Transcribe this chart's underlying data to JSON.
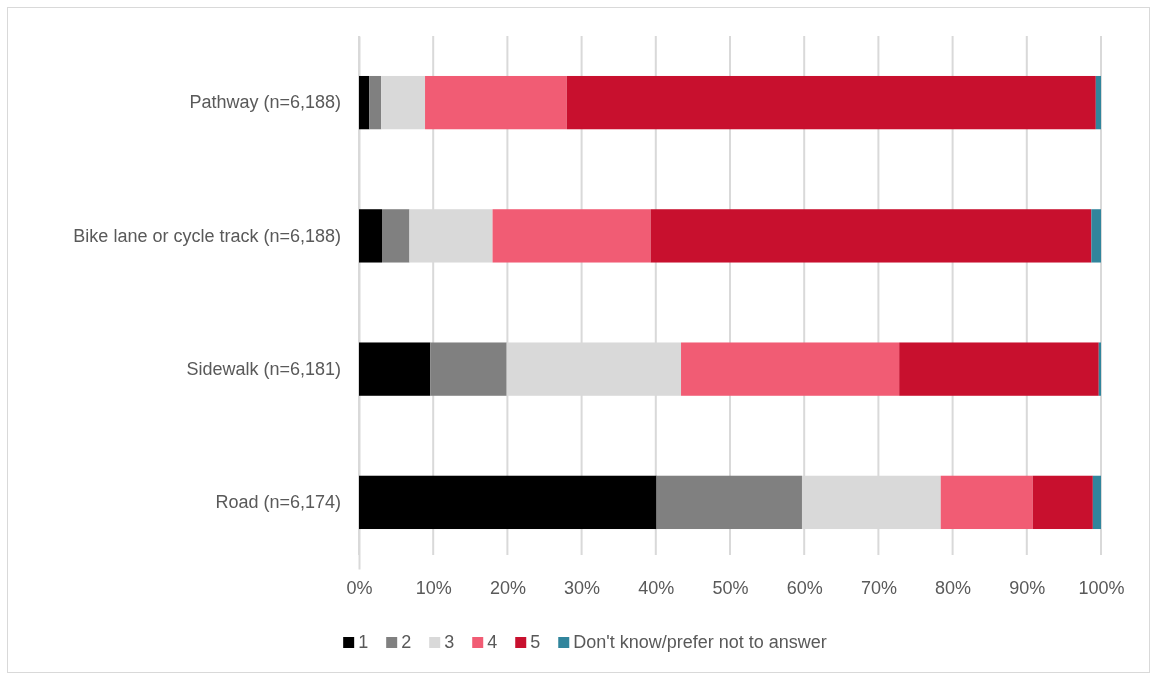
{
  "chart_data": {
    "type": "bar",
    "orientation": "horizontal",
    "stacked": true,
    "categories": [
      "Pathway (n=6,188)",
      "Bike lane or cycle track (n=6,188)",
      "Sidewalk (n=6,181)",
      "Road (n=6,174)"
    ],
    "series": [
      {
        "name": "1",
        "color": "#000000",
        "values": [
          1.4,
          3.1,
          9.6,
          40.1
        ]
      },
      {
        "name": "2",
        "color": "#808080",
        "values": [
          1.6,
          3.7,
          10.3,
          19.6
        ]
      },
      {
        "name": "3",
        "color": "#d9d9d9",
        "values": [
          5.9,
          11.2,
          23.5,
          18.7
        ]
      },
      {
        "name": "4",
        "color": "#f15c74",
        "values": [
          19.1,
          21.3,
          29.4,
          12.4
        ]
      },
      {
        "name": "5",
        "color": "#c8102e",
        "values": [
          71.3,
          59.4,
          26.9,
          8.1
        ]
      },
      {
        "name": "Don't know/prefer not to answer",
        "color": "#31859c",
        "values": [
          0.7,
          1.3,
          0.3,
          1.1
        ]
      }
    ],
    "xlim": [
      0,
      100
    ],
    "xticks": [
      {
        "value": 0,
        "label": "0%"
      },
      {
        "value": 10,
        "label": "10%"
      },
      {
        "value": 20,
        "label": "20%"
      },
      {
        "value": 30,
        "label": "30%"
      },
      {
        "value": 40,
        "label": "40%"
      },
      {
        "value": 50,
        "label": "50%"
      },
      {
        "value": 60,
        "label": "60%"
      },
      {
        "value": 70,
        "label": "70%"
      },
      {
        "value": 80,
        "label": "80%"
      },
      {
        "value": 90,
        "label": "90%"
      },
      {
        "value": 100,
        "label": "100%"
      }
    ],
    "grid": "x",
    "legend": "bottom"
  }
}
